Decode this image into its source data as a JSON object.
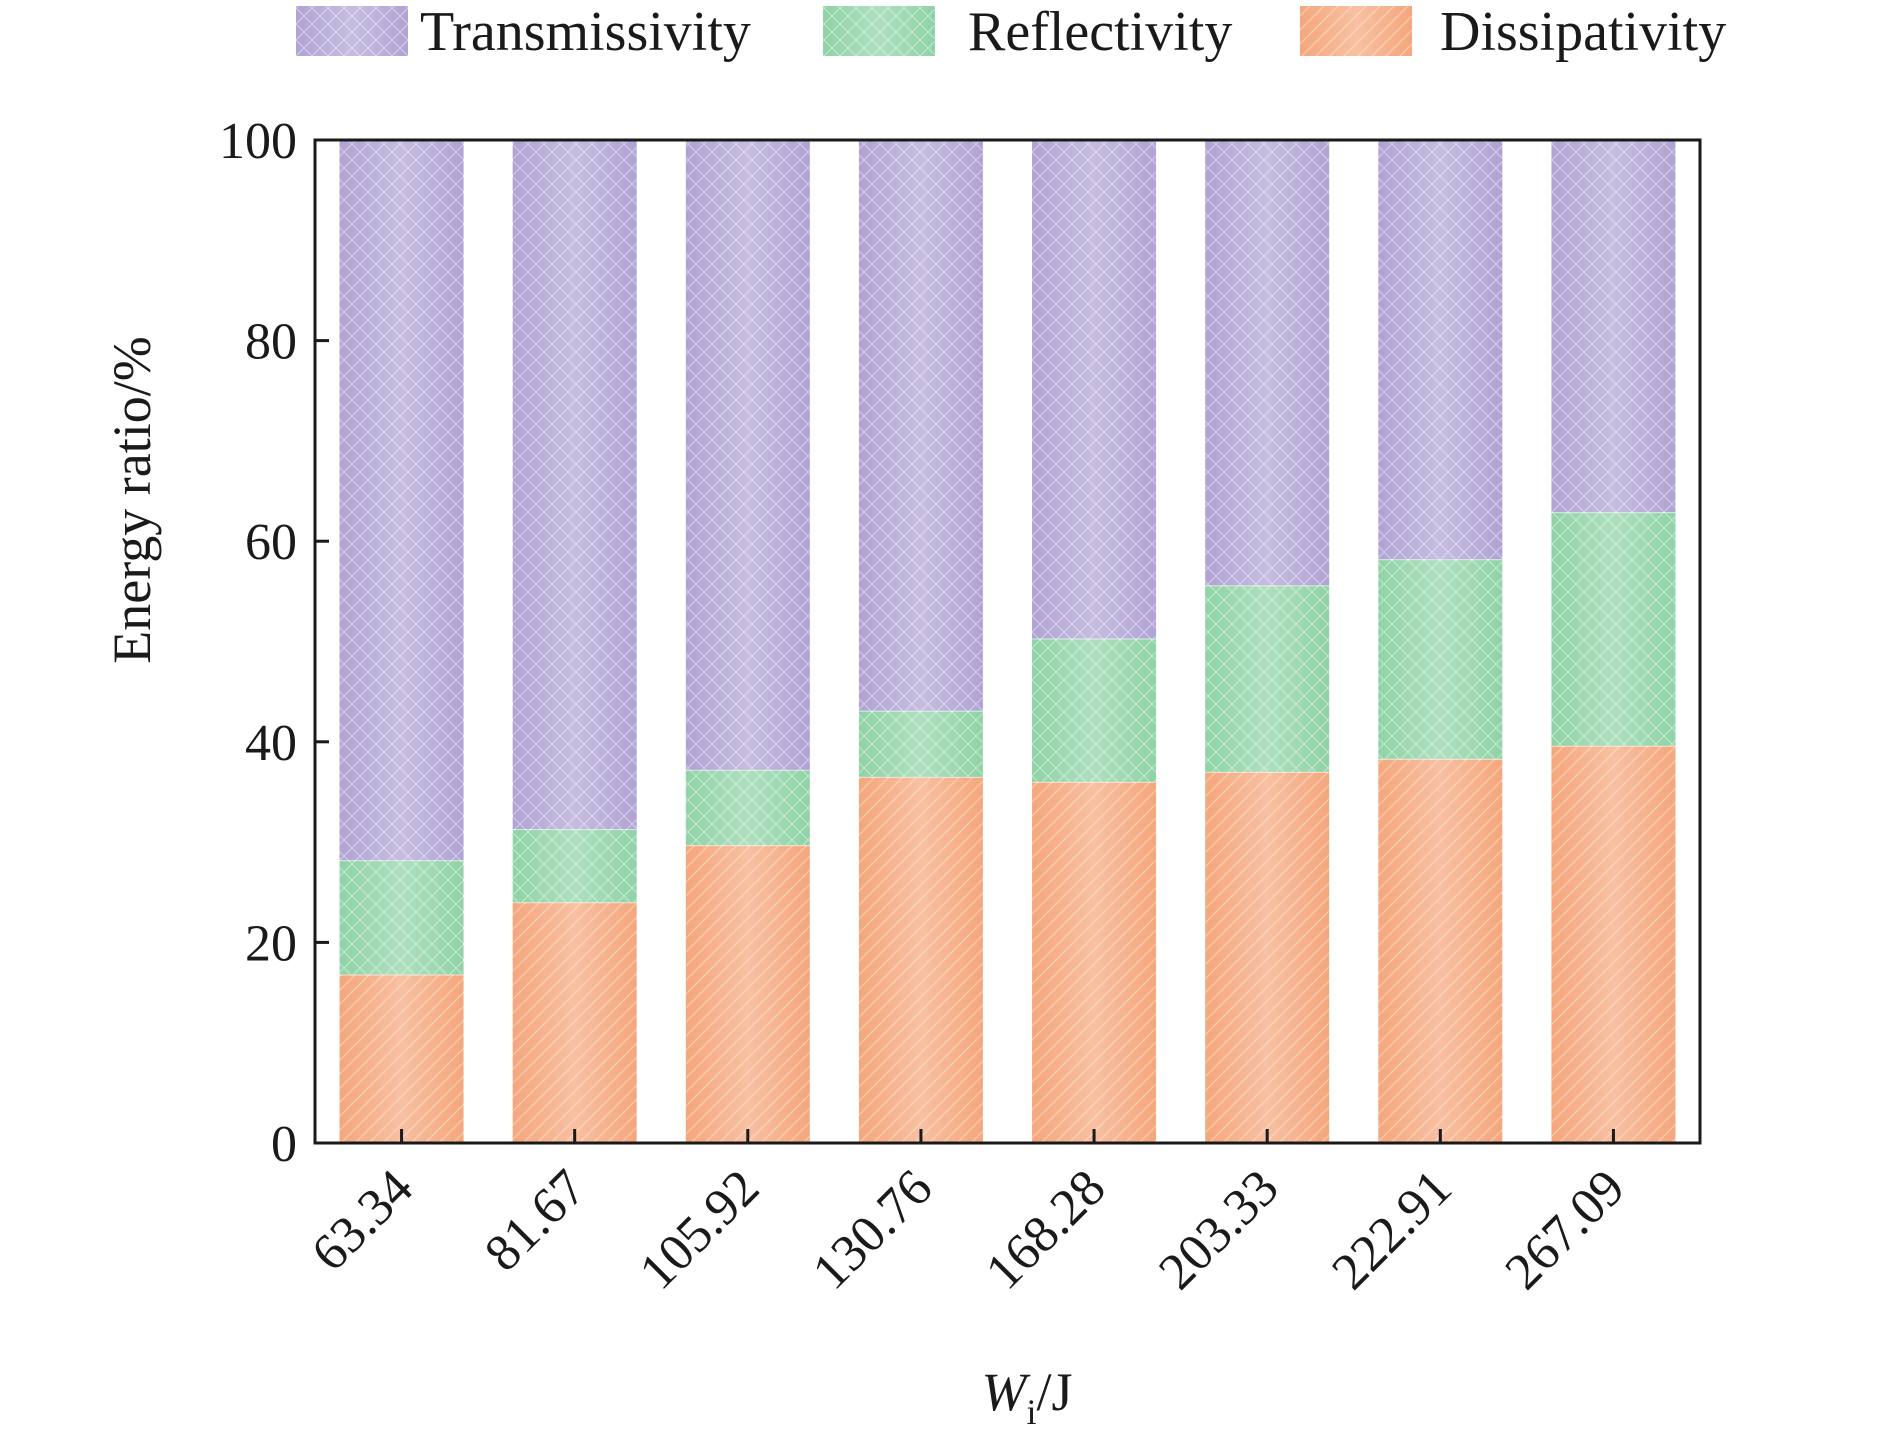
{
  "chart_data": {
    "type": "bar",
    "stacked": true,
    "categories": [
      "63.34",
      "81.67",
      "105.92",
      "130.76",
      "168.28",
      "203.33",
      "222.91",
      "267.09"
    ],
    "series": [
      {
        "name": "Dissipativity",
        "color": "#f5a77c",
        "pattern": "diagonal-hatch",
        "values": [
          16.8,
          24.0,
          29.7,
          36.5,
          36.0,
          37.0,
          38.3,
          39.6
        ]
      },
      {
        "name": "Reflectivity",
        "color": "#8fd3a6",
        "pattern": "cross-hatch",
        "values": [
          11.4,
          7.3,
          7.5,
          6.6,
          14.3,
          18.6,
          19.9,
          23.3
        ]
      },
      {
        "name": "Transmissivity",
        "color": "#b0a3d4",
        "pattern": "cross-hatch",
        "values": [
          71.8,
          68.7,
          62.8,
          56.9,
          49.7,
          44.4,
          41.8,
          37.1
        ]
      }
    ],
    "legend_order": [
      "Transmissivity",
      "Reflectivity",
      "Dissipativity"
    ],
    "legend_position": "top",
    "ylabel": "Energy ratio/%",
    "xlabel_main": "W",
    "xlabel_sub": "i",
    "xlabel_unit": "/J",
    "ylim": [
      0,
      100
    ],
    "yticks": [
      "0",
      "20",
      "40",
      "60",
      "80",
      "100"
    ],
    "xtick_rotation": -45,
    "grid": false
  }
}
